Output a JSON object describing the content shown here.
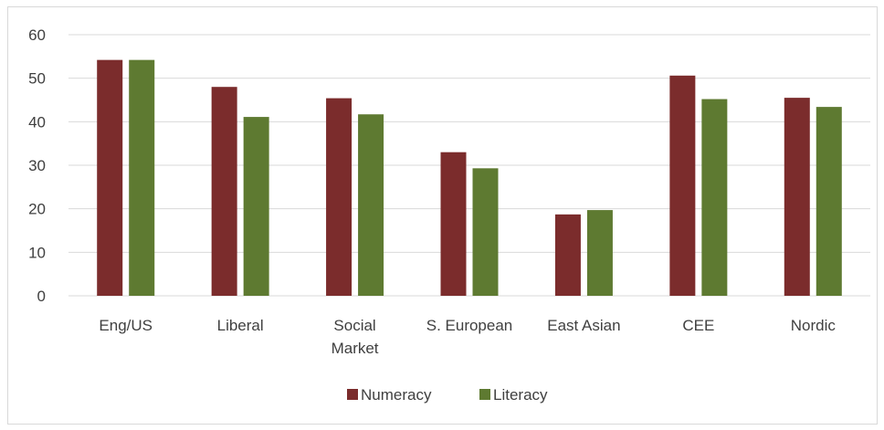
{
  "chart_data": {
    "type": "bar",
    "title": "",
    "xlabel": "",
    "ylabel": "",
    "ylim": [
      0,
      60
    ],
    "yticks": [
      0,
      10,
      20,
      30,
      40,
      50,
      60
    ],
    "grid": true,
    "legend_position": "bottom",
    "categories": [
      [
        "Eng/US"
      ],
      [
        "Liberal"
      ],
      [
        "Social",
        "Market"
      ],
      [
        "S. European"
      ],
      [
        "East Asian"
      ],
      [
        "CEE"
      ],
      [
        "Nordic"
      ]
    ],
    "series": [
      {
        "name": "Numeracy",
        "color": "#7b2c2c",
        "values": [
          54.2,
          48.0,
          45.4,
          33.0,
          18.7,
          50.6,
          45.5
        ]
      },
      {
        "name": "Literacy",
        "color": "#5e7a31",
        "values": [
          54.2,
          41.1,
          41.7,
          29.3,
          19.7,
          45.2,
          43.4
        ]
      }
    ]
  }
}
